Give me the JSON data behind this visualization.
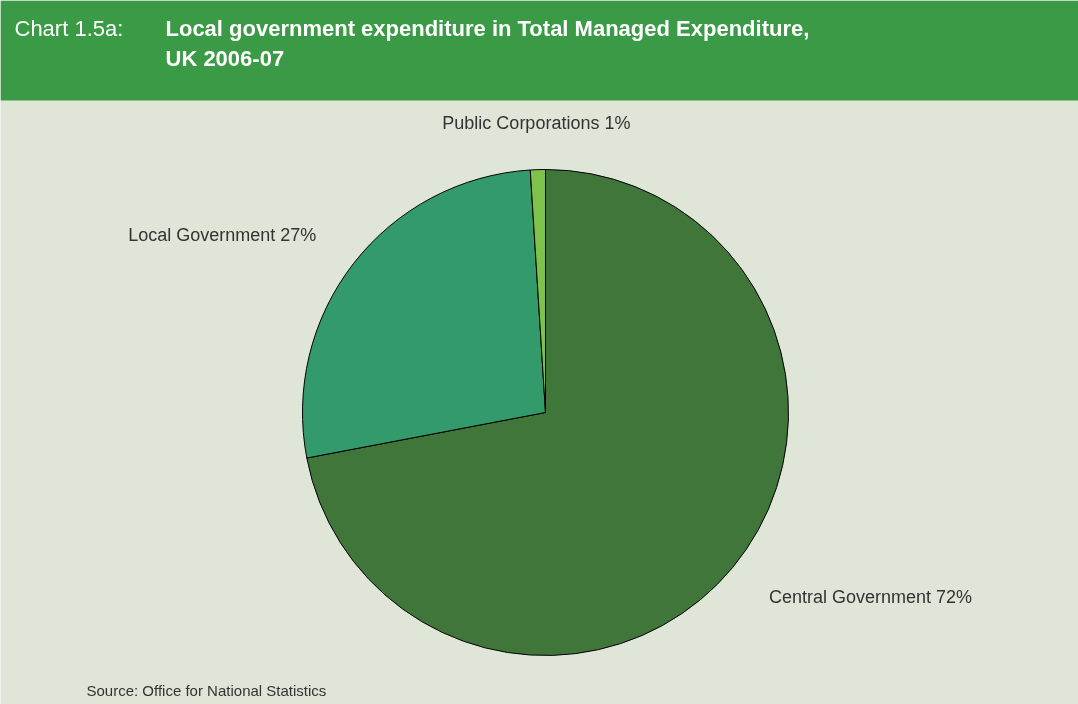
{
  "chart_data": {
    "type": "pie",
    "title": "Chart 1.5a: Local government expenditure in Total Managed Expenditure, UK 2006-07",
    "categories": [
      "Central Government",
      "Local Government",
      "Public Corporations"
    ],
    "values": [
      72,
      27,
      1
    ],
    "value_labels": [
      "72%",
      "27%",
      "1%"
    ],
    "colors": [
      "#41763a",
      "#339b6b",
      "#7dc24b"
    ],
    "annotations": [
      "Source: Office for National Statistics"
    ]
  }
}
